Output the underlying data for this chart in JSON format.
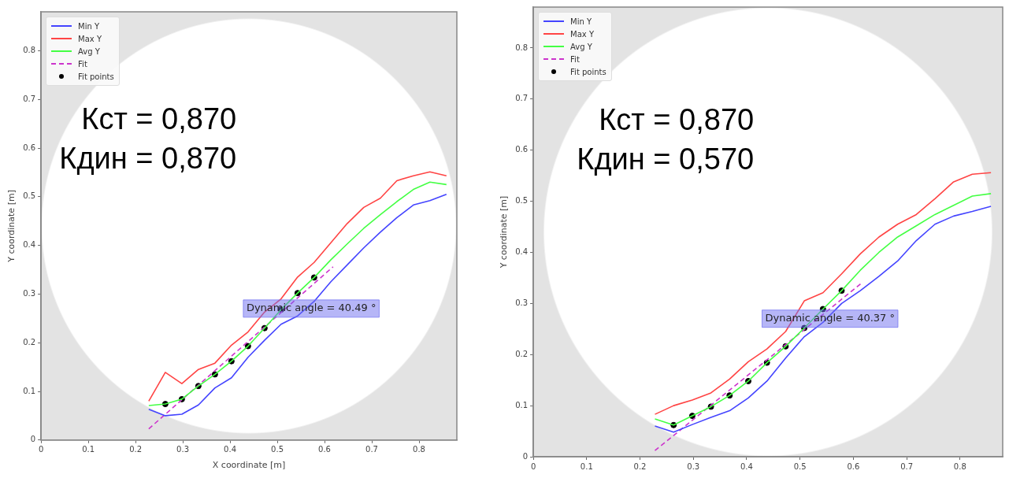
{
  "chart_data": [
    {
      "type": "line",
      "xlabel": "X coordinate [m]",
      "ylabel": "Y coordinate [m]",
      "xlim": [
        0,
        0.88
      ],
      "ylim": [
        0,
        0.88
      ],
      "xticks": [
        0,
        0.1,
        0.2,
        0.3,
        0.4,
        0.5,
        0.6,
        0.7,
        0.8
      ],
      "yticks": [
        0,
        0.1,
        0.2,
        0.3,
        0.4,
        0.5,
        0.6,
        0.7,
        0.8
      ],
      "grid": false,
      "legend": "top left",
      "marker": "none",
      "x": [
        0.228,
        0.263,
        0.298,
        0.333,
        0.368,
        0.403,
        0.438,
        0.473,
        0.508,
        0.543,
        0.578,
        0.613,
        0.648,
        0.683,
        0.718,
        0.753,
        0.788,
        0.823,
        0.858
      ],
      "series": [
        {
          "name": "Min Y",
          "color": "#4444ff",
          "values": [
            0.063,
            0.05,
            0.053,
            0.072,
            0.107,
            0.128,
            0.17,
            0.205,
            0.238,
            0.255,
            0.285,
            0.325,
            0.36,
            0.395,
            0.427,
            0.457,
            0.483,
            0.492,
            0.505
          ]
        },
        {
          "name": "Max Y",
          "color": "#ff4444",
          "values": [
            0.08,
            0.139,
            0.116,
            0.145,
            0.158,
            0.195,
            0.222,
            0.263,
            0.29,
            0.335,
            0.365,
            0.405,
            0.445,
            0.478,
            0.497,
            0.533,
            0.543,
            0.551,
            0.543
          ]
        },
        {
          "name": "Avg Y",
          "color": "#44ff44",
          "values": [
            0.071,
            0.074,
            0.084,
            0.111,
            0.135,
            0.162,
            0.193,
            0.23,
            0.268,
            0.302,
            0.334,
            0.37,
            0.403,
            0.435,
            0.463,
            0.49,
            0.515,
            0.53,
            0.525
          ]
        },
        {
          "name": "Fit",
          "color": "#cc33cc",
          "line_style": "dashed",
          "x": [
            0.228,
            0.618
          ],
          "values": [
            0.023,
            0.356
          ]
        },
        {
          "name": "Fit points",
          "type": "scatter",
          "marker": "circle",
          "color": "#000000",
          "x": [
            0.263,
            0.298,
            0.333,
            0.368,
            0.403,
            0.438,
            0.473,
            0.508,
            0.543,
            0.578
          ],
          "values": [
            0.074,
            0.084,
            0.111,
            0.135,
            0.162,
            0.193,
            0.23,
            0.268,
            0.302,
            0.334
          ]
        }
      ],
      "annotations": [
        "Кст = 0,870",
        "Кдин = 0,870",
        "Dynamic angle = 40.49 °"
      ]
    },
    {
      "type": "line",
      "ylabel": "Y coordinate [m]",
      "xlim": [
        0,
        0.88
      ],
      "ylim": [
        0,
        0.88
      ],
      "xticks": [
        0,
        0.1,
        0.2,
        0.3,
        0.4,
        0.5,
        0.6,
        0.7,
        0.8
      ],
      "yticks": [
        0,
        0.1,
        0.2,
        0.3,
        0.4,
        0.5,
        0.6,
        0.7,
        0.8
      ],
      "grid": false,
      "legend": "top left",
      "marker": "none",
      "x": [
        0.228,
        0.263,
        0.298,
        0.333,
        0.368,
        0.403,
        0.438,
        0.473,
        0.508,
        0.543,
        0.578,
        0.613,
        0.648,
        0.683,
        0.718,
        0.753,
        0.788,
        0.823,
        0.858
      ],
      "series": [
        {
          "name": "Min Y",
          "color": "#4444ff",
          "values": [
            0.06,
            0.048,
            0.063,
            0.077,
            0.09,
            0.115,
            0.148,
            0.193,
            0.235,
            0.263,
            0.3,
            0.325,
            0.353,
            0.383,
            0.423,
            0.455,
            0.471,
            0.48,
            0.49
          ]
        },
        {
          "name": "Max Y",
          "color": "#ff4444",
          "values": [
            0.083,
            0.1,
            0.111,
            0.125,
            0.152,
            0.186,
            0.211,
            0.245,
            0.305,
            0.321,
            0.358,
            0.397,
            0.43,
            0.455,
            0.474,
            0.505,
            0.538,
            0.553,
            0.556
          ]
        },
        {
          "name": "Avg Y",
          "color": "#44ff44",
          "values": [
            0.074,
            0.062,
            0.08,
            0.098,
            0.12,
            0.148,
            0.184,
            0.216,
            0.252,
            0.289,
            0.325,
            0.365,
            0.4,
            0.43,
            0.452,
            0.474,
            0.492,
            0.51,
            0.515
          ]
        },
        {
          "name": "Fit",
          "color": "#cc33cc",
          "line_style": "dashed",
          "x": [
            0.228,
            0.618
          ],
          "values": [
            0.012,
            0.342
          ]
        },
        {
          "name": "Fit points",
          "type": "scatter",
          "marker": "circle",
          "color": "#000000",
          "x": [
            0.263,
            0.298,
            0.333,
            0.368,
            0.403,
            0.438,
            0.473,
            0.508,
            0.543,
            0.578
          ],
          "values": [
            0.062,
            0.08,
            0.098,
            0.12,
            0.148,
            0.184,
            0.216,
            0.252,
            0.289,
            0.325
          ]
        }
      ],
      "annotations": [
        "Кст = 0,870",
        "Кдин = 0,570",
        "Dynamic angle = 40.37 °"
      ]
    }
  ]
}
